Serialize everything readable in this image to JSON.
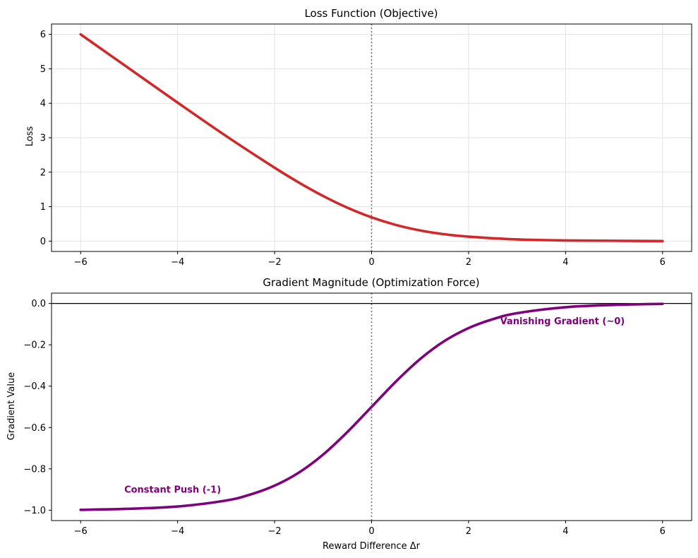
{
  "chart_data": [
    {
      "type": "line",
      "title": "Loss Function (Objective)",
      "xlabel": "",
      "ylabel": "Loss",
      "xlim": [
        -6.6,
        6.6
      ],
      "ylim": [
        -0.3,
        6.3
      ],
      "xticks": [
        -6,
        -4,
        -2,
        0,
        2,
        4,
        6
      ],
      "xtick_labels": [
        "−6",
        "−4",
        "−2",
        "0",
        "2",
        "4",
        "6"
      ],
      "yticks": [
        0,
        1,
        2,
        3,
        4,
        5,
        6
      ],
      "ytick_labels": [
        "0",
        "1",
        "2",
        "3",
        "4",
        "5",
        "6"
      ],
      "grid": true,
      "vline_x": 0,
      "series": [
        {
          "color": "#d62728",
          "x": [
            -6,
            -5,
            -4,
            -3,
            -2,
            -1.5,
            -1,
            -0.5,
            0,
            0.5,
            1,
            1.5,
            2,
            3,
            4,
            5,
            6
          ],
          "y": [
            6.0,
            5.01,
            4.02,
            3.05,
            2.13,
            1.7,
            1.31,
            0.97,
            0.69,
            0.47,
            0.31,
            0.2,
            0.13,
            0.05,
            0.02,
            0.01,
            0.0
          ]
        }
      ],
      "annotations": []
    },
    {
      "type": "line",
      "title": "Gradient Magnitude (Optimization Force)",
      "xlabel": "Reward Difference Δr",
      "ylabel": "Gradient Value",
      "xlim": [
        -6.6,
        6.6
      ],
      "ylim": [
        -1.05,
        0.05
      ],
      "xticks": [
        -6,
        -4,
        -2,
        0,
        2,
        4,
        6
      ],
      "xtick_labels": [
        "−6",
        "−4",
        "−2",
        "0",
        "2",
        "4",
        "6"
      ],
      "yticks": [
        0.0,
        -0.2,
        -0.4,
        -0.6,
        -0.8,
        -1.0
      ],
      "ytick_labels": [
        "0.0",
        "−0.2",
        "−0.4",
        "−0.6",
        "−0.8",
        "−1.0"
      ],
      "grid": false,
      "vline_x": 0,
      "hline_y": 0,
      "series": [
        {
          "color": "#800080",
          "x": [
            -6,
            -5,
            -4,
            -3,
            -2.5,
            -2,
            -1.5,
            -1,
            -0.5,
            0,
            0.5,
            1,
            1.5,
            2,
            2.5,
            3,
            4,
            5,
            6
          ],
          "y": [
            -0.998,
            -0.993,
            -0.982,
            -0.953,
            -0.924,
            -0.881,
            -0.818,
            -0.731,
            -0.622,
            -0.5,
            -0.378,
            -0.269,
            -0.182,
            -0.119,
            -0.076,
            -0.047,
            -0.018,
            -0.007,
            -0.002
          ]
        }
      ],
      "annotations": [
        {
          "text": "Constant Push (-1)",
          "x": -5.1,
          "y": -0.9,
          "color": "#800080"
        },
        {
          "text": "Vanishing Gradient (~0)",
          "x": 2.65,
          "y": -0.085,
          "color": "#800080"
        }
      ]
    }
  ]
}
